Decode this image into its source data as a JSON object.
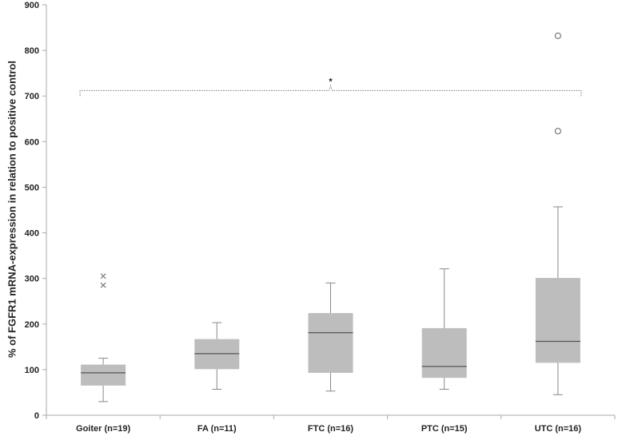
{
  "chart_data": {
    "type": "boxplot",
    "title": "",
    "xlabel": "",
    "ylabel": "% of FGFR1 mRNA-expression in relation to positive control",
    "ylim": [
      0,
      900
    ],
    "yticks": [
      0,
      100,
      200,
      300,
      400,
      500,
      600,
      700,
      800,
      900
    ],
    "grid": false,
    "legend": "none",
    "categories": [
      "Goiter (n=19)",
      "FA (n=11)",
      "FTC (n=16)",
      "PTC (n=15)",
      "UTC (n=16)"
    ],
    "boxes": [
      {
        "min": 30,
        "q1": 65,
        "median": 93,
        "q3": 111,
        "max": 125,
        "outliers": [
          {
            "value": 305,
            "marker": "x"
          },
          {
            "value": 285,
            "marker": "x"
          }
        ]
      },
      {
        "min": 57,
        "q1": 101,
        "median": 135,
        "q3": 167,
        "max": 203,
        "outliers": []
      },
      {
        "min": 53,
        "q1": 93,
        "median": 181,
        "q3": 224,
        "max": 290,
        "outliers": []
      },
      {
        "min": 57,
        "q1": 82,
        "median": 107,
        "q3": 191,
        "max": 321,
        "outliers": []
      },
      {
        "min": 45,
        "q1": 115,
        "median": 162,
        "q3": 301,
        "max": 457,
        "outliers": [
          {
            "value": 832,
            "marker": "o"
          },
          {
            "value": 623,
            "marker": "o"
          }
        ]
      }
    ],
    "significance": {
      "from": 0,
      "to": 4,
      "y": 712,
      "label": "*"
    },
    "colors": {
      "box_fill": "#bdbdbd",
      "median": "#555555",
      "whisker": "#888888",
      "axis": "#aaaaaa",
      "bracket": "#777777",
      "outlier": "#777777"
    }
  }
}
